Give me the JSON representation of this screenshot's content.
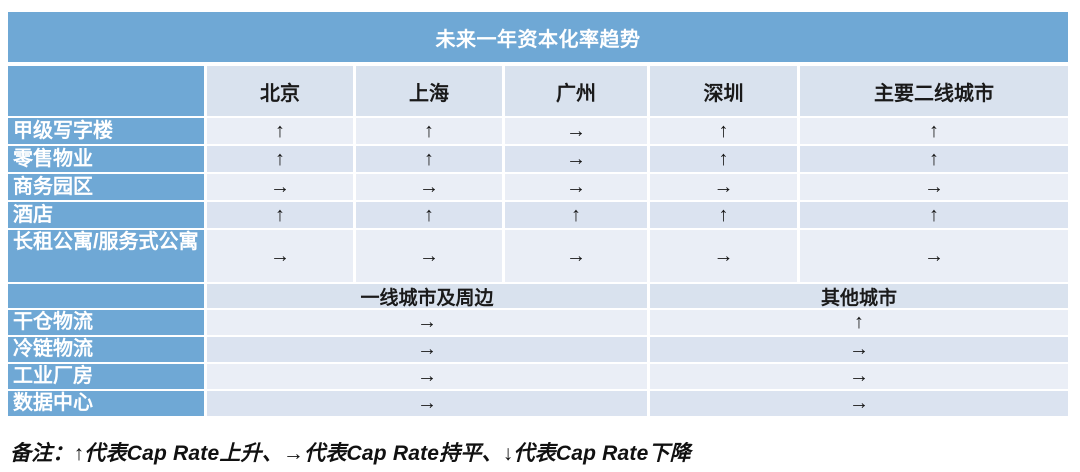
{
  "chart_data": {
    "type": "table",
    "title": "未来一年资本化率趋势",
    "city_columns": [
      "北京",
      "上海",
      "广州",
      "深圳",
      "主要二线城市"
    ],
    "city_rows": [
      {
        "label": "甲级写字楼",
        "values": [
          "↑",
          "↑",
          "→",
          "↑",
          "↑"
        ]
      },
      {
        "label": "零售物业",
        "values": [
          "↑",
          "↑",
          "→",
          "↑",
          "↑"
        ]
      },
      {
        "label": "商务园区",
        "values": [
          "→",
          "→",
          "→",
          "→",
          "→"
        ]
      },
      {
        "label": "酒店",
        "values": [
          "↑",
          "↑",
          "↑",
          "↑",
          "↑"
        ]
      },
      {
        "label": "长租公寓/服务式公寓",
        "values": [
          "→",
          "→",
          "→",
          "→",
          "→"
        ]
      }
    ],
    "region_columns": [
      {
        "label": "一线城市及周边",
        "span": 3
      },
      {
        "label": "其他城市",
        "span": 2
      }
    ],
    "region_rows": [
      {
        "label": "干仓物流",
        "values": [
          "→",
          "↑"
        ]
      },
      {
        "label": "冷链物流",
        "values": [
          "→",
          "→"
        ]
      },
      {
        "label": "工业厂房",
        "values": [
          "→",
          "→"
        ]
      },
      {
        "label": "数据中心",
        "values": [
          "→",
          "→"
        ]
      }
    ],
    "note": "备注：↑代表Cap Rate上升、→代表Cap Rate持平、↓代表Cap Rate下降"
  },
  "colors": {
    "header_blue": "#6FA8D5",
    "colhead_bg": "#D9E2EE",
    "subhead_bg": "#D9E2EE",
    "row_light": "#EAEEF6",
    "row_dark": "#DBE3F0",
    "text_dark": "#1A1A1A",
    "label_text": "#FFFFFF"
  }
}
